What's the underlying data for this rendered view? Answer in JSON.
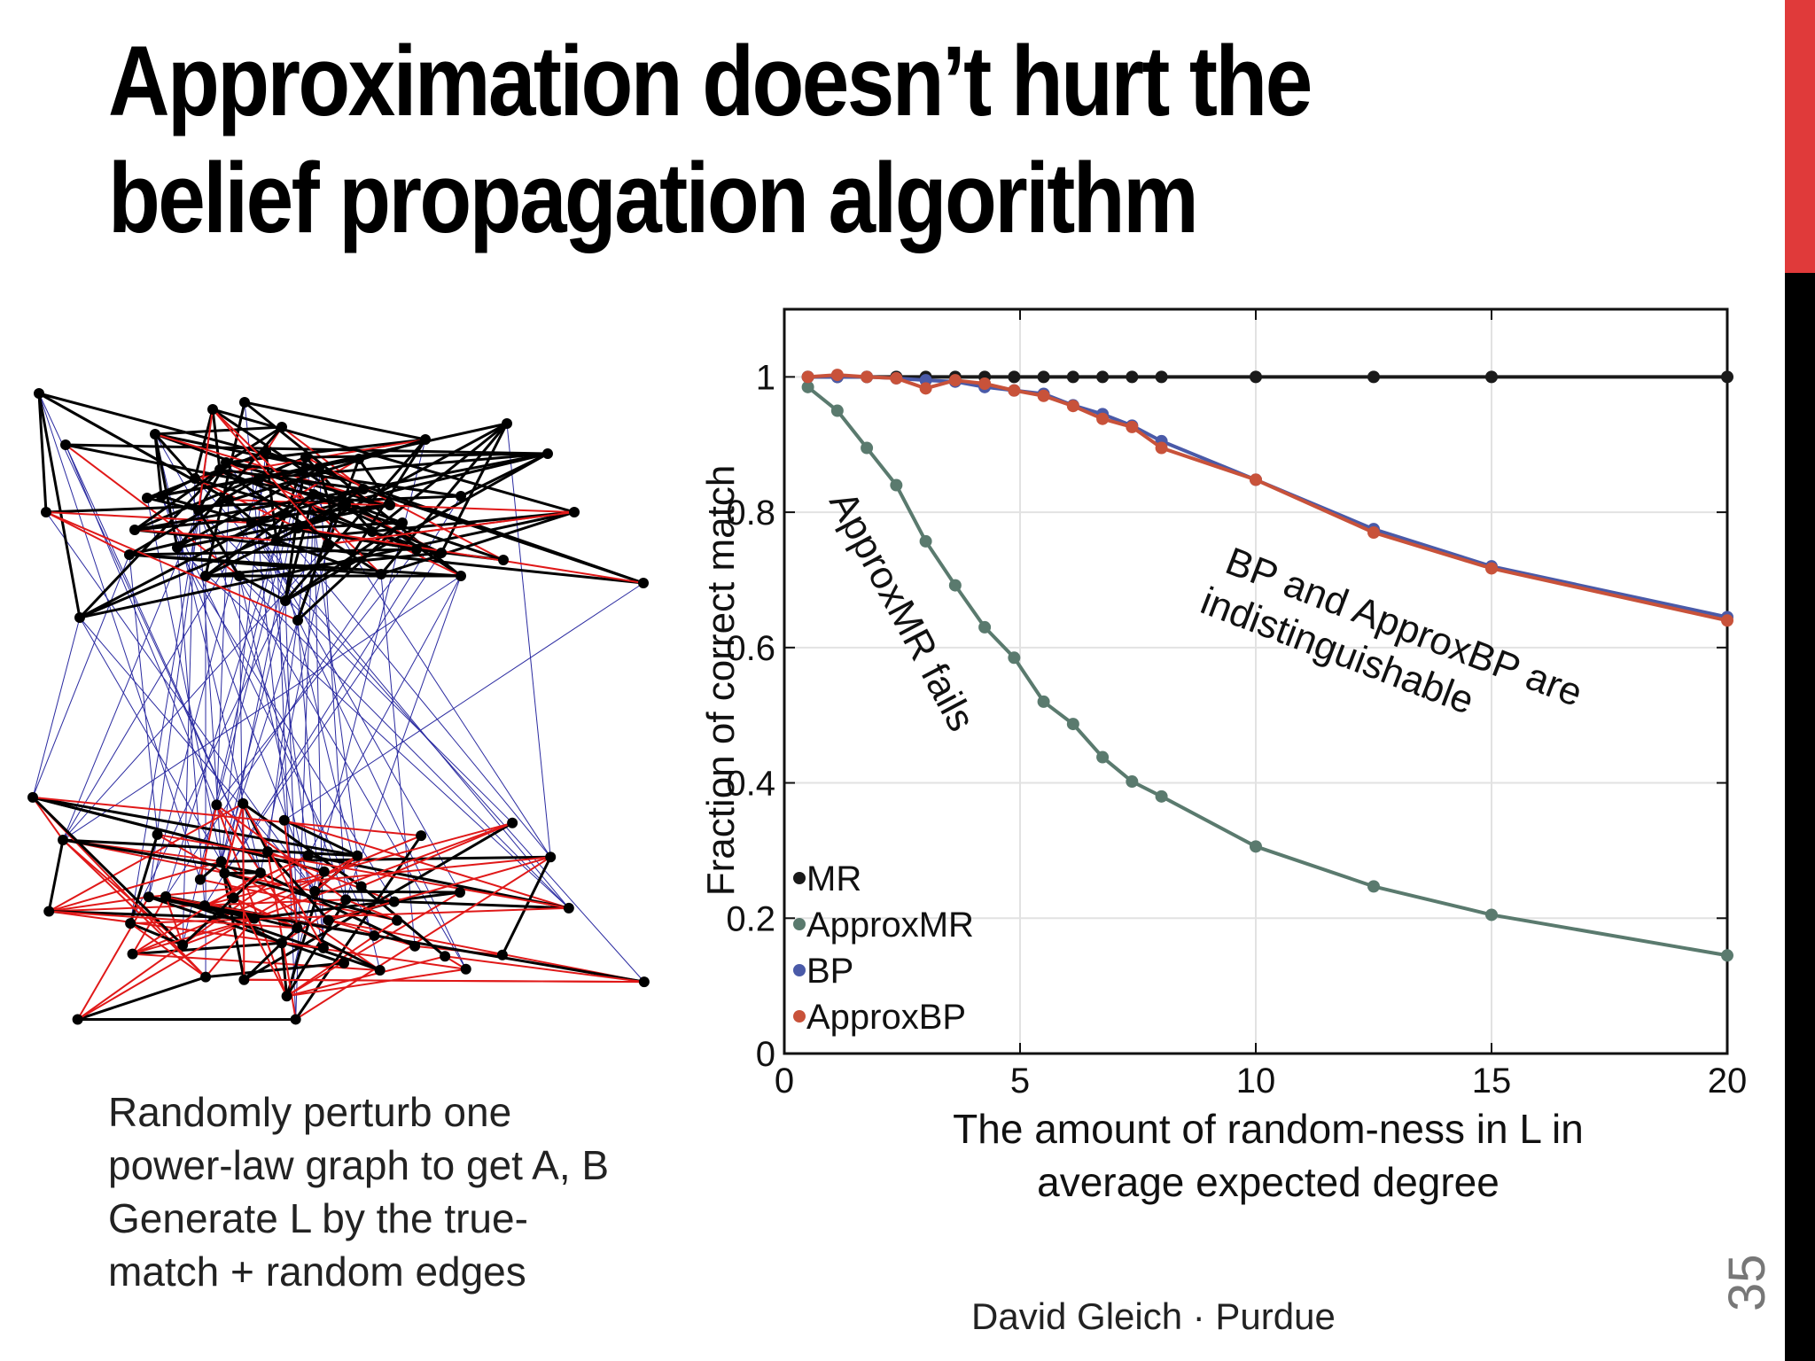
{
  "title": {
    "line1": "Approximation doesn’t hurt the",
    "line2": "belief propagation algorithm"
  },
  "caption": {
    "line1": "Randomly perturb one",
    "line2": "power-law graph to get A, B",
    "line3": "Generate L by the true-",
    "line4": "match + random edges"
  },
  "footer": "David Gleich · Purdue",
  "page_number": "35",
  "colors": {
    "accent_red": "#e03a3a",
    "mr": "#1a1a1a",
    "approxmr": "#5a7a6e",
    "bp": "#4a5aa8",
    "approxbp": "#c8523a",
    "graph_black": "#000000",
    "graph_red": "#e01818",
    "graph_blue": "#2a2aa0"
  },
  "graph_illustration": {
    "icon": "network-graph-icon"
  },
  "chart_data": {
    "type": "line",
    "xlabel_line1": "The amount of random-ness in L in",
    "xlabel_line2": "average expected degree",
    "ylabel": "Fraction of correct match",
    "xlim": [
      0,
      20
    ],
    "ylim": [
      0,
      1.1
    ],
    "xticks": [
      "0",
      "5",
      "10",
      "15",
      "20"
    ],
    "xtick_values": [
      0,
      5,
      10,
      15,
      20
    ],
    "yticks": [
      "0",
      "0.2",
      "0.4",
      "0.6",
      "0.8",
      "1"
    ],
    "ytick_values": [
      0,
      0.2,
      0.4,
      0.6,
      0.8,
      1.0
    ],
    "grid": true,
    "legend_position": "bottom-left",
    "annotations": {
      "approxmr": "ApproxMR fails",
      "bp_line1": "BP and ApproxBP are",
      "bp_line2": "indistinguishable"
    },
    "x": [
      0.5,
      1.125,
      1.75,
      2.375,
      3.0,
      3.625,
      4.25,
      4.875,
      5.5,
      6.125,
      6.75,
      7.375,
      8.0,
      10.0,
      12.5,
      15.0,
      20.0
    ],
    "series": [
      {
        "name": "MR",
        "color_key": "mr",
        "values": [
          1,
          1,
          1,
          1,
          1,
          1,
          1,
          1,
          1,
          1,
          1,
          1,
          1,
          1,
          1,
          1,
          1
        ]
      },
      {
        "name": "ApproxMR",
        "color_key": "approxmr",
        "values": [
          0.985,
          0.95,
          0.895,
          0.84,
          0.757,
          0.692,
          0.63,
          0.585,
          0.52,
          0.487,
          0.438,
          0.402,
          0.38,
          0.306,
          0.247,
          0.205,
          0.145
        ]
      },
      {
        "name": "BP",
        "color_key": "bp",
        "values": [
          1,
          1,
          1,
          0.998,
          0.995,
          0.993,
          0.985,
          0.98,
          0.975,
          0.958,
          0.945,
          0.928,
          0.905,
          0.848,
          0.775,
          0.72,
          0.645
        ]
      },
      {
        "name": "ApproxBP",
        "color_key": "approxbp",
        "values": [
          1,
          1.003,
          1.0,
          0.998,
          0.983,
          0.995,
          0.99,
          0.98,
          0.972,
          0.957,
          0.938,
          0.926,
          0.895,
          0.848,
          0.77,
          0.717,
          0.64
        ]
      }
    ]
  }
}
